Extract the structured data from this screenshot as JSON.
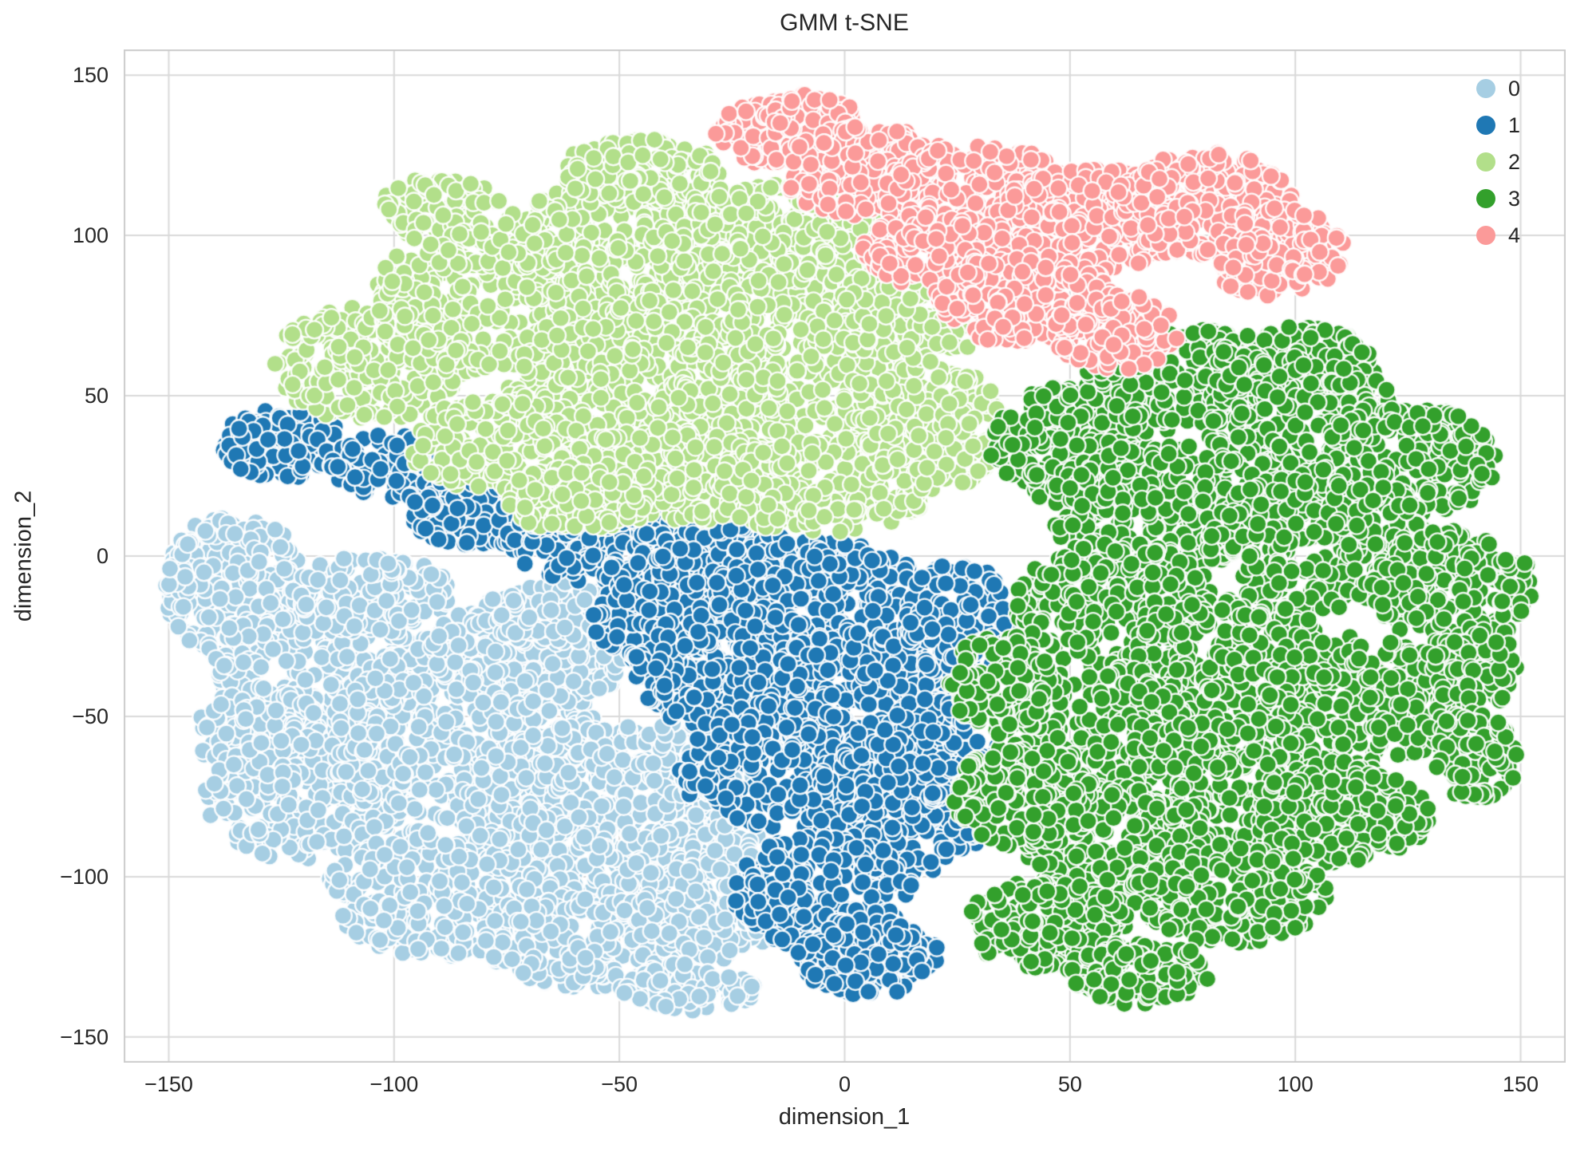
{
  "chart_data": {
    "type": "scatter",
    "title": "GMM t-SNE",
    "xlabel": "dimension_1",
    "ylabel": "dimension_2",
    "xlim": [
      -160,
      160
    ],
    "ylim": [
      -158,
      158
    ],
    "x_ticks": [
      -150,
      -100,
      -50,
      0,
      50,
      100,
      150
    ],
    "y_ticks": [
      150,
      100,
      50,
      0,
      -50,
      -100,
      -150
    ],
    "grid": true,
    "legend_position": "upper right",
    "marker": {
      "radius_px": 11,
      "edge_color": "rgba(255,255,255,0.9)",
      "edge_width": 2.4
    },
    "colors": {
      "grid": "#d9d9d9",
      "spine": "#cccccc",
      "background": "#ffffff",
      "text": "#262626"
    },
    "series": [
      {
        "name": "0",
        "color": "#a6cee3",
        "approx_center": [
          -85,
          -62
        ],
        "x_range": [
          -153,
          -10
        ],
        "y_range": [
          -147,
          17
        ],
        "blobs": [
          [
            -140,
            0,
            10,
            12,
            80
          ],
          [
            -135,
            -10,
            16,
            22,
            200
          ],
          [
            -115,
            -35,
            25,
            25,
            350
          ],
          [
            -130,
            -55,
            14,
            14,
            120
          ],
          [
            -120,
            -75,
            22,
            20,
            250
          ],
          [
            -105,
            -12,
            18,
            12,
            150
          ],
          [
            -85,
            -55,
            30,
            28,
            450
          ],
          [
            -70,
            -30,
            22,
            18,
            250
          ],
          [
            -65,
            -18,
            14,
            10,
            100
          ],
          [
            -55,
            -80,
            30,
            28,
            450
          ],
          [
            -90,
            -105,
            25,
            20,
            300
          ],
          [
            -55,
            -120,
            25,
            15,
            250
          ],
          [
            -30,
            -105,
            20,
            22,
            250
          ],
          [
            -35,
            -135,
            15,
            8,
            100
          ],
          [
            -30,
            -62,
            15,
            15,
            130
          ]
        ]
      },
      {
        "name": "1",
        "color": "#1f78b4",
        "approx_center": [
          -15,
          -45
        ],
        "x_range": [
          -139,
          37
        ],
        "y_range": [
          -143,
          46
        ],
        "blobs": [
          [
            -125,
            35,
            14,
            11,
            140
          ],
          [
            -100,
            28,
            14,
            10,
            120
          ],
          [
            -80,
            15,
            18,
            12,
            170
          ],
          [
            -55,
            5,
            20,
            13,
            200
          ],
          [
            -40,
            -20,
            16,
            14,
            160
          ],
          [
            -30,
            -5,
            22,
            16,
            260
          ],
          [
            -5,
            -15,
            25,
            20,
            320
          ],
          [
            -25,
            -35,
            22,
            20,
            280
          ],
          [
            5,
            -45,
            25,
            22,
            320
          ],
          [
            -15,
            -65,
            22,
            20,
            260
          ],
          [
            10,
            -80,
            22,
            20,
            260
          ],
          [
            -5,
            -105,
            20,
            18,
            220
          ],
          [
            5,
            -125,
            16,
            12,
            150
          ],
          [
            25,
            -20,
            12,
            18,
            140
          ],
          [
            20,
            -60,
            14,
            16,
            150
          ]
        ]
      },
      {
        "name": "2",
        "color": "#b2df8a",
        "approx_center": [
          -35,
          62
        ],
        "x_range": [
          -130,
          37
        ],
        "y_range": [
          8,
          132
        ],
        "blobs": [
          [
            -105,
            60,
            22,
            18,
            250
          ],
          [
            -90,
            108,
            14,
            10,
            100
          ],
          [
            -80,
            80,
            25,
            22,
            300
          ],
          [
            -50,
            95,
            28,
            22,
            350
          ],
          [
            -45,
            120,
            18,
            10,
            130
          ],
          [
            -15,
            95,
            28,
            22,
            350
          ],
          [
            -45,
            55,
            30,
            25,
            400
          ],
          [
            -10,
            55,
            28,
            25,
            350
          ],
          [
            -75,
            35,
            22,
            15,
            220
          ],
          [
            -40,
            25,
            25,
            15,
            250
          ],
          [
            -5,
            22,
            25,
            15,
            250
          ],
          [
            20,
            40,
            16,
            20,
            180
          ],
          [
            15,
            75,
            18,
            15,
            160
          ],
          [
            -60,
            18,
            16,
            10,
            120
          ]
        ]
      },
      {
        "name": "3",
        "color": "#33a02c",
        "approx_center": [
          85,
          -25
        ],
        "x_range": [
          22,
          152
        ],
        "y_range": [
          -142,
          74
        ],
        "blobs": [
          [
            50,
            35,
            18,
            18,
            220
          ],
          [
            75,
            55,
            22,
            16,
            250
          ],
          [
            100,
            60,
            18,
            12,
            150
          ],
          [
            100,
            45,
            22,
            18,
            250
          ],
          [
            125,
            30,
            20,
            18,
            220
          ],
          [
            70,
            15,
            25,
            20,
            300
          ],
          [
            105,
            5,
            25,
            22,
            320
          ],
          [
            135,
            -10,
            18,
            18,
            200
          ],
          [
            60,
            -15,
            22,
            20,
            270
          ],
          [
            85,
            -35,
            25,
            22,
            320
          ],
          [
            115,
            -45,
            22,
            20,
            260
          ],
          [
            140,
            -35,
            10,
            12,
            90
          ],
          [
            55,
            -55,
            22,
            20,
            260
          ],
          [
            85,
            -70,
            25,
            20,
            300
          ],
          [
            110,
            -80,
            20,
            16,
            220
          ],
          [
            140,
            -62,
            10,
            14,
            90
          ],
          [
            60,
            -90,
            20,
            18,
            230
          ],
          [
            85,
            -105,
            22,
            16,
            230
          ],
          [
            45,
            -115,
            18,
            14,
            180
          ],
          [
            65,
            -130,
            16,
            10,
            130
          ],
          [
            35,
            -40,
            12,
            16,
            130
          ],
          [
            40,
            -75,
            16,
            16,
            160
          ]
        ]
      },
      {
        "name": "4",
        "color": "#fb9a99",
        "approx_center": [
          35,
          105
        ],
        "x_range": [
          -30,
          112
        ],
        "y_range": [
          56,
          145
        ],
        "blobs": [
          [
            -15,
            132,
            14,
            10,
            140
          ],
          [
            -8,
            138,
            10,
            6,
            60
          ],
          [
            5,
            120,
            20,
            14,
            220
          ],
          [
            30,
            112,
            22,
            16,
            260
          ],
          [
            55,
            105,
            22,
            16,
            260
          ],
          [
            80,
            110,
            20,
            16,
            220
          ],
          [
            95,
            95,
            16,
            14,
            150
          ],
          [
            20,
            95,
            16,
            12,
            150
          ],
          [
            40,
            80,
            20,
            14,
            200
          ],
          [
            60,
            70,
            14,
            12,
            120
          ]
        ]
      }
    ]
  }
}
